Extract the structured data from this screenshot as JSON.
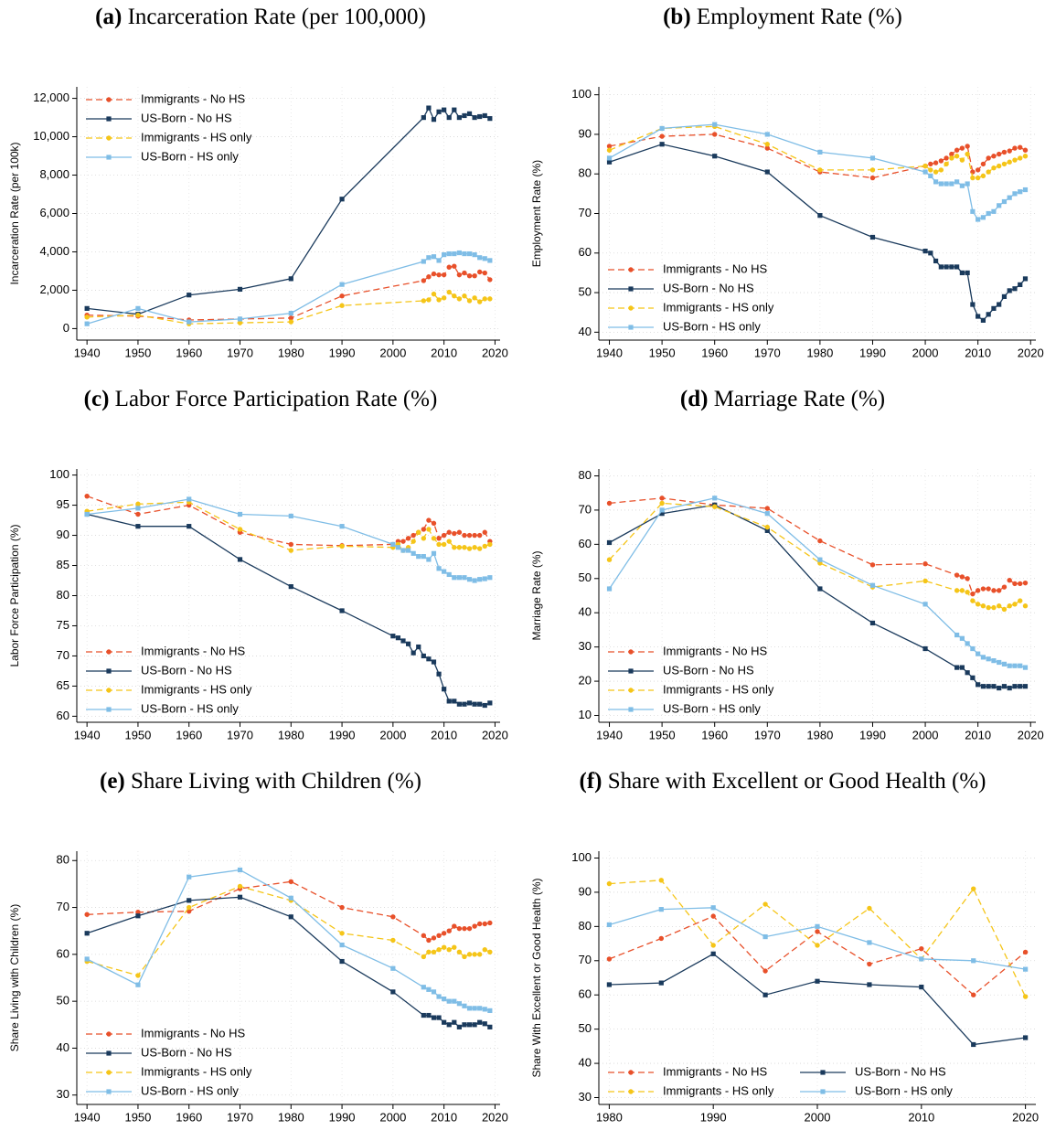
{
  "chart_data": [
    {
      "type": "line",
      "panel_label": "(a)",
      "title": "Incarceration Rate (per 100,000)",
      "y_label": "Incarceration Rate (per 100k)",
      "x": [
        1940,
        1950,
        1960,
        1970,
        1980,
        1990,
        2006,
        2007,
        2008,
        2009,
        2010,
        2011,
        2012,
        2013,
        2014,
        2015,
        2016,
        2017,
        2018,
        2019
      ],
      "xlim": [
        1938,
        2021
      ],
      "xticks": [
        1940,
        1950,
        1960,
        1970,
        1980,
        1990,
        2000,
        2010,
        2020
      ],
      "ylim": [
        -600,
        12600
      ],
      "yticks": [
        0,
        {
          "value": 2000,
          "label": "2,000"
        },
        {
          "value": 4000,
          "label": "4,000"
        },
        {
          "value": 6000,
          "label": "6,000"
        },
        {
          "value": 8000,
          "label": "8,000"
        },
        {
          "value": 10000,
          "label": "10,000"
        },
        {
          "value": 12000,
          "label": "12,000"
        }
      ],
      "grid": true,
      "legend": "upper left",
      "legend_columns": 1,
      "series": [
        {
          "name": "Immigrants - No HS",
          "color": "#e8502a",
          "linestyle": "dashed",
          "marker": "circle",
          "values": [
            700,
            650,
            450,
            500,
            550,
            1700,
            2500,
            2700,
            2850,
            2800,
            2800,
            3200,
            3250,
            2800,
            2900,
            2750,
            2750,
            2950,
            2900,
            2550
          ]
        },
        {
          "name": "US-Born - No HS",
          "color": "#1a3a5c",
          "linestyle": "solid",
          "marker": "square",
          "values": [
            1050,
            750,
            1750,
            2050,
            2600,
            6750,
            11000,
            11500,
            10900,
            11300,
            11400,
            11000,
            11400,
            11000,
            11100,
            11200,
            11000,
            11050,
            11100,
            10950
          ]
        },
        {
          "name": "Immigrants - HS only",
          "color": "#f5c518",
          "linestyle": "dashed",
          "marker": "circle",
          "values": [
            600,
            700,
            250,
            300,
            350,
            1200,
            1450,
            1500,
            1800,
            1500,
            1600,
            1900,
            1700,
            1550,
            1700,
            1450,
            1600,
            1400,
            1550,
            1550
          ]
        },
        {
          "name": "US-Born - HS only",
          "color": "#7fbde6",
          "linestyle": "solid",
          "marker": "square",
          "values": [
            250,
            1050,
            350,
            500,
            800,
            2300,
            3500,
            3700,
            3750,
            3550,
            3850,
            3900,
            3900,
            3950,
            3900,
            3900,
            3850,
            3700,
            3650,
            3550
          ]
        }
      ]
    },
    {
      "type": "line",
      "panel_label": "(b)",
      "title": "Employment Rate (%)",
      "y_label": "Employment Rate (%)",
      "x": [
        1940,
        1950,
        1960,
        1970,
        1980,
        1990,
        2000,
        2001,
        2002,
        2003,
        2004,
        2005,
        2006,
        2007,
        2008,
        2009,
        2010,
        2011,
        2012,
        2013,
        2014,
        2015,
        2016,
        2017,
        2018,
        2019
      ],
      "xlim": [
        1938,
        2021
      ],
      "xticks": [
        1940,
        1950,
        1960,
        1970,
        1980,
        1990,
        2000,
        2010,
        2020
      ],
      "ylim": [
        38,
        102
      ],
      "yticks": [
        40,
        50,
        60,
        70,
        80,
        90,
        100
      ],
      "grid": true,
      "legend": "lower left",
      "legend_columns": 1,
      "series": [
        {
          "name": "Immigrants - No HS",
          "color": "#e8502a",
          "linestyle": "dashed",
          "marker": "circle",
          "values": [
            87,
            89.5,
            90,
            86.5,
            80.5,
            79,
            82,
            82.5,
            82.8,
            83.3,
            84,
            85,
            86,
            86.5,
            87,
            80.5,
            81,
            82.5,
            84,
            84.5,
            85,
            85.5,
            85.8,
            86.5,
            86.7,
            86
          ]
        },
        {
          "name": "US-Born - No HS",
          "color": "#1a3a5c",
          "linestyle": "solid",
          "marker": "square",
          "values": [
            83,
            87.5,
            84.5,
            80.5,
            69.5,
            64,
            60.5,
            60,
            58,
            56.5,
            56.5,
            56.5,
            56.5,
            55,
            55,
            47,
            44,
            43,
            44.5,
            46,
            47,
            49,
            50.5,
            51,
            52,
            53.5
          ]
        },
        {
          "name": "Immigrants - HS only",
          "color": "#f5c518",
          "linestyle": "dashed",
          "marker": "circle",
          "values": [
            86,
            91.5,
            92,
            87.5,
            81,
            81,
            82,
            81,
            80.5,
            81,
            82.5,
            84,
            84.5,
            83.5,
            85,
            79,
            79,
            79.5,
            80.5,
            81.5,
            82,
            82.5,
            83,
            83.5,
            84,
            84.5
          ]
        },
        {
          "name": "US-Born - HS only",
          "color": "#7fbde6",
          "linestyle": "solid",
          "marker": "square",
          "values": [
            84,
            91.5,
            92.5,
            90,
            85.5,
            84,
            80.5,
            79.5,
            78,
            77.5,
            77.5,
            77.5,
            78,
            77,
            77.5,
            70.5,
            68.5,
            69,
            70,
            70.5,
            72,
            73,
            74,
            75,
            75.5,
            76
          ]
        }
      ]
    },
    {
      "type": "line",
      "panel_label": "(c)",
      "title": "Labor Force Participation Rate (%)",
      "y_label": "Labor Force Participation (%)",
      "x": [
        1940,
        1950,
        1960,
        1970,
        1980,
        1990,
        2000,
        2001,
        2002,
        2003,
        2004,
        2005,
        2006,
        2007,
        2008,
        2009,
        2010,
        2011,
        2012,
        2013,
        2014,
        2015,
        2016,
        2017,
        2018,
        2019
      ],
      "xlim": [
        1938,
        2021
      ],
      "xticks": [
        1940,
        1950,
        1960,
        1970,
        1980,
        1990,
        2000,
        2010,
        2020
      ],
      "ylim": [
        59,
        101
      ],
      "yticks": [
        60,
        65,
        70,
        75,
        80,
        85,
        90,
        95,
        100
      ],
      "grid": true,
      "legend": "lower left",
      "legend_columns": 1,
      "series": [
        {
          "name": "Immigrants - No HS",
          "color": "#e8502a",
          "linestyle": "dashed",
          "marker": "circle",
          "values": [
            96.5,
            93.5,
            95,
            90.5,
            88.5,
            88.3,
            88.5,
            89,
            89,
            89.5,
            90,
            90.5,
            91,
            92.5,
            92,
            89.5,
            90,
            90.5,
            90.3,
            90.5,
            90,
            90,
            90,
            90,
            90.5,
            89
          ]
        },
        {
          "name": "US-Born - No HS",
          "color": "#1a3a5c",
          "linestyle": "solid",
          "marker": "square",
          "values": [
            93.5,
            91.5,
            91.5,
            86,
            81.5,
            77.5,
            73.3,
            73,
            72.5,
            72,
            70.5,
            71.5,
            70,
            69.5,
            69,
            67,
            64.5,
            62.5,
            62.5,
            62,
            62,
            62.2,
            62,
            62,
            61.8,
            62.2
          ]
        },
        {
          "name": "Immigrants - HS only",
          "color": "#f5c518",
          "linestyle": "dashed",
          "marker": "circle",
          "values": [
            94,
            95.2,
            95.5,
            91,
            87.5,
            88.2,
            88,
            88.5,
            87.5,
            88,
            89,
            90.5,
            89.5,
            91,
            89.5,
            88.5,
            88.5,
            89,
            88,
            88,
            88,
            87.8,
            88,
            87.8,
            88.2,
            88.5
          ]
        },
        {
          "name": "US-Born - HS only",
          "color": "#7fbde6",
          "linestyle": "solid",
          "marker": "square",
          "values": [
            93.5,
            94.5,
            96,
            93.5,
            93.2,
            91.5,
            88.5,
            88,
            87.5,
            87.5,
            87,
            86.5,
            86.5,
            86,
            87,
            84.5,
            84,
            83.5,
            83,
            83,
            83,
            82.7,
            82.5,
            82.7,
            82.8,
            83
          ]
        }
      ]
    },
    {
      "type": "line",
      "panel_label": "(d)",
      "title": "Marriage Rate (%)",
      "y_label": "Marriage Rate (%)",
      "x": [
        1940,
        1950,
        1960,
        1970,
        1980,
        1990,
        2000,
        2006,
        2007,
        2008,
        2009,
        2010,
        2011,
        2012,
        2013,
        2014,
        2015,
        2016,
        2017,
        2018,
        2019
      ],
      "xlim": [
        1938,
        2021
      ],
      "xticks": [
        1940,
        1950,
        1960,
        1970,
        1980,
        1990,
        2000,
        2010,
        2020
      ],
      "ylim": [
        8,
        82
      ],
      "yticks": [
        10,
        20,
        30,
        40,
        50,
        60,
        70,
        80
      ],
      "grid": true,
      "legend": "lower left",
      "legend_columns": 1,
      "series": [
        {
          "name": "Immigrants - No HS",
          "color": "#e8502a",
          "linestyle": "dashed",
          "marker": "circle",
          "values": [
            72,
            73.5,
            71.5,
            70.5,
            61,
            54,
            54.3,
            51,
            50.5,
            50,
            45.5,
            46.5,
            47,
            47,
            46.5,
            46.5,
            47.5,
            49.5,
            48.5,
            48.5,
            48.7
          ]
        },
        {
          "name": "US-Born - No HS",
          "color": "#1a3a5c",
          "linestyle": "solid",
          "marker": "square",
          "values": [
            60.5,
            69,
            71.5,
            64,
            47,
            37,
            29.5,
            24,
            24,
            22.5,
            21,
            19,
            18.5,
            18.5,
            18.5,
            18,
            18.5,
            18,
            18.5,
            18.5,
            18.5
          ]
        },
        {
          "name": "Immigrants - HS only",
          "color": "#f5c518",
          "linestyle": "dashed",
          "marker": "circle",
          "values": [
            55.5,
            72,
            71,
            65,
            54.5,
            47.5,
            49.3,
            46.5,
            46.5,
            46,
            43.5,
            42.5,
            42,
            41.5,
            41.5,
            42,
            41,
            42,
            42.5,
            43.5,
            42
          ]
        },
        {
          "name": "US-Born - HS only",
          "color": "#7fbde6",
          "linestyle": "solid",
          "marker": "square",
          "values": [
            47,
            70,
            73.5,
            69,
            55.5,
            48,
            42.5,
            33.5,
            32.5,
            31,
            29.5,
            28,
            27,
            26.5,
            26,
            25.5,
            25,
            24.5,
            24.5,
            24.5,
            24
          ]
        }
      ]
    },
    {
      "type": "line",
      "panel_label": "(e)",
      "title": "Share Living with Children (%)",
      "y_label": "Share Living with Children (%)",
      "x": [
        1940,
        1950,
        1960,
        1970,
        1980,
        1990,
        2000,
        2006,
        2007,
        2008,
        2009,
        2010,
        2011,
        2012,
        2013,
        2014,
        2015,
        2016,
        2017,
        2018,
        2019
      ],
      "xlim": [
        1938,
        2021
      ],
      "xticks": [
        1940,
        1950,
        1960,
        1970,
        1980,
        1990,
        2000,
        2010,
        2020
      ],
      "ylim": [
        28,
        82
      ],
      "yticks": [
        30,
        40,
        50,
        60,
        70,
        80
      ],
      "grid": true,
      "legend": "lower left",
      "legend_columns": 1,
      "series": [
        {
          "name": "Immigrants - No HS",
          "color": "#e8502a",
          "linestyle": "dashed",
          "marker": "circle",
          "values": [
            68.5,
            69,
            69.2,
            74,
            75.5,
            70,
            68,
            64,
            63,
            63.5,
            64,
            64.5,
            65,
            66,
            65.5,
            65.5,
            65.5,
            66,
            66.5,
            66.5,
            66.7
          ]
        },
        {
          "name": "US-Born - No HS",
          "color": "#1a3a5c",
          "linestyle": "solid",
          "marker": "square",
          "values": [
            64.5,
            68.2,
            71.5,
            72.2,
            68,
            58.5,
            52,
            47,
            47,
            46.5,
            46.5,
            45.5,
            45,
            45.5,
            44.5,
            45,
            45,
            45,
            45.5,
            45.2,
            44.5
          ]
        },
        {
          "name": "Immigrants - HS only",
          "color": "#f5c518",
          "linestyle": "dashed",
          "marker": "circle",
          "values": [
            58.5,
            55.5,
            70,
            74.5,
            71.5,
            64.5,
            63,
            59.5,
            60.5,
            60.5,
            61,
            61.5,
            61,
            61.5,
            60.5,
            59.5,
            60,
            60,
            60,
            61,
            60.5
          ]
        },
        {
          "name": "US-Born - HS only",
          "color": "#7fbde6",
          "linestyle": "solid",
          "marker": "square",
          "values": [
            59,
            53.5,
            76.5,
            78,
            72,
            62,
            57,
            53,
            52.5,
            52,
            51,
            50.5,
            50,
            50,
            49.5,
            49,
            48.5,
            48.5,
            48.5,
            48.3,
            48
          ]
        }
      ]
    },
    {
      "type": "line",
      "panel_label": "(f)",
      "title": "Share with Excellent or Good Health (%)",
      "y_label": "Share With Excellent or Good Health (%)",
      "x": [
        1980,
        1985,
        1990,
        1995,
        2000,
        2005,
        2010,
        2015,
        2020
      ],
      "xlim": [
        1979,
        2021
      ],
      "xticks": [
        1980,
        1990,
        2000,
        2010,
        2020
      ],
      "ylim": [
        28,
        102
      ],
      "yticks": [
        30,
        40,
        50,
        60,
        70,
        80,
        90,
        100
      ],
      "grid": true,
      "legend": "lower left",
      "legend_columns": 2,
      "series": [
        {
          "name": "Immigrants - No HS",
          "color": "#e8502a",
          "linestyle": "dashed",
          "marker": "circle",
          "values": [
            70.5,
            76.5,
            83,
            67,
            78.5,
            69,
            73.5,
            60,
            72.5
          ]
        },
        {
          "name": "US-Born - No HS",
          "color": "#1a3a5c",
          "linestyle": "solid",
          "marker": "square",
          "values": [
            63,
            63.5,
            72,
            60,
            64,
            63,
            62.3,
            45.5,
            47.5
          ]
        },
        {
          "name": "Immigrants - HS only",
          "color": "#f5c518",
          "linestyle": "dashed",
          "marker": "circle",
          "values": [
            92.5,
            93.5,
            74.5,
            86.5,
            74.5,
            85.3,
            70.5,
            91,
            59.5
          ]
        },
        {
          "name": "US-Born - HS only",
          "color": "#7fbde6",
          "linestyle": "solid",
          "marker": "square",
          "values": [
            80.5,
            85,
            85.5,
            77,
            80,
            75.3,
            70.5,
            70,
            67.5
          ]
        }
      ]
    }
  ]
}
